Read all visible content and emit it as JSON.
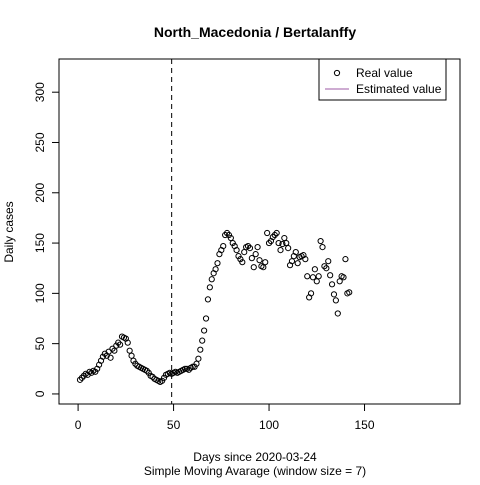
{
  "chart_data": {
    "type": "scatter",
    "title": "North_Macedonia / Bertalanffy",
    "xlabel": "Days since 2020-03-24",
    "subtitle": "Simple Moving Avarage (window size = 7)",
    "ylabel": "Daily cases",
    "xlim": [
      -10,
      200
    ],
    "ylim": [
      -10,
      333
    ],
    "xticks": [
      0,
      50,
      100,
      150
    ],
    "yticks": [
      0,
      50,
      100,
      150,
      200,
      250,
      300
    ],
    "grid": false,
    "legend_position": "top-right",
    "vline_x": 49,
    "legend": [
      {
        "label": "Real value",
        "marker": "open-circle",
        "color": "#000000"
      },
      {
        "label": "Estimated value",
        "marker": "line",
        "color": "#9e5aa6"
      }
    ],
    "series": [
      {
        "name": "Real value",
        "color": "#000000",
        "points": [
          [
            1,
            14
          ],
          [
            2,
            16
          ],
          [
            3,
            18
          ],
          [
            4,
            20
          ],
          [
            5,
            19
          ],
          [
            6,
            22
          ],
          [
            7,
            21
          ],
          [
            8,
            23
          ],
          [
            9,
            22
          ],
          [
            10,
            25
          ],
          [
            11,
            29
          ],
          [
            12,
            33
          ],
          [
            13,
            37
          ],
          [
            14,
            40
          ],
          [
            15,
            38
          ],
          [
            16,
            42
          ],
          [
            17,
            36
          ],
          [
            18,
            45
          ],
          [
            19,
            43
          ],
          [
            20,
            48
          ],
          [
            21,
            51
          ],
          [
            22,
            49
          ],
          [
            23,
            57
          ],
          [
            24,
            56
          ],
          [
            25,
            55
          ],
          [
            26,
            51
          ],
          [
            27,
            43
          ],
          [
            28,
            38
          ],
          [
            29,
            33
          ],
          [
            30,
            30
          ],
          [
            31,
            28
          ],
          [
            32,
            27
          ],
          [
            33,
            26
          ],
          [
            34,
            25
          ],
          [
            35,
            24
          ],
          [
            36,
            23
          ],
          [
            37,
            21
          ],
          [
            38,
            18
          ],
          [
            39,
            17
          ],
          [
            40,
            15
          ],
          [
            41,
            14
          ],
          [
            42,
            13
          ],
          [
            43,
            12
          ],
          [
            44,
            13
          ],
          [
            45,
            16
          ],
          [
            46,
            19
          ],
          [
            47,
            20
          ],
          [
            48,
            21
          ],
          [
            49,
            20
          ],
          [
            50,
            21
          ],
          [
            51,
            22
          ],
          [
            52,
            21
          ],
          [
            53,
            22
          ],
          [
            54,
            23
          ],
          [
            55,
            24
          ],
          [
            56,
            25
          ],
          [
            57,
            25
          ],
          [
            58,
            24
          ],
          [
            59,
            26
          ],
          [
            60,
            27
          ],
          [
            61,
            27
          ],
          [
            62,
            30
          ],
          [
            63,
            35
          ],
          [
            64,
            44
          ],
          [
            65,
            53
          ],
          [
            66,
            63
          ],
          [
            67,
            75
          ],
          [
            68,
            94
          ],
          [
            69,
            106
          ],
          [
            70,
            114
          ],
          [
            71,
            120
          ],
          [
            72,
            124
          ],
          [
            73,
            130
          ],
          [
            74,
            139
          ],
          [
            75,
            143
          ],
          [
            76,
            147
          ],
          [
            77,
            158
          ],
          [
            78,
            160
          ],
          [
            79,
            158
          ],
          [
            80,
            155
          ],
          [
            81,
            150
          ],
          [
            82,
            147
          ],
          [
            83,
            143
          ],
          [
            84,
            137
          ],
          [
            85,
            134
          ],
          [
            86,
            131
          ],
          [
            87,
            141
          ],
          [
            88,
            146
          ],
          [
            89,
            147
          ],
          [
            90,
            145
          ],
          [
            91,
            135
          ],
          [
            92,
            126
          ],
          [
            93,
            139
          ],
          [
            94,
            146
          ],
          [
            95,
            133
          ],
          [
            96,
            127
          ],
          [
            97,
            126
          ],
          [
            98,
            131
          ],
          [
            99,
            160
          ],
          [
            100,
            150
          ],
          [
            101,
            152
          ],
          [
            102,
            156
          ],
          [
            103,
            158
          ],
          [
            104,
            160
          ],
          [
            105,
            150
          ],
          [
            106,
            143
          ],
          [
            107,
            149
          ],
          [
            108,
            155
          ],
          [
            109,
            150
          ],
          [
            110,
            145
          ],
          [
            111,
            128
          ],
          [
            112,
            132
          ],
          [
            113,
            137
          ],
          [
            114,
            141
          ],
          [
            115,
            130
          ],
          [
            116,
            136
          ],
          [
            117,
            137
          ],
          [
            118,
            138
          ],
          [
            119,
            134
          ],
          [
            120,
            117
          ],
          [
            121,
            96
          ],
          [
            122,
            100
          ],
          [
            123,
            116
          ],
          [
            124,
            124
          ],
          [
            125,
            112
          ],
          [
            126,
            117
          ],
          [
            127,
            152
          ],
          [
            128,
            146
          ],
          [
            129,
            127
          ],
          [
            130,
            125
          ],
          [
            131,
            132
          ],
          [
            132,
            118
          ],
          [
            133,
            109
          ],
          [
            134,
            99
          ],
          [
            135,
            93
          ],
          [
            136,
            80
          ],
          [
            137,
            112
          ],
          [
            138,
            117
          ],
          [
            139,
            116
          ],
          [
            140,
            134
          ],
          [
            141,
            100
          ],
          [
            142,
            101
          ]
        ]
      }
    ]
  }
}
